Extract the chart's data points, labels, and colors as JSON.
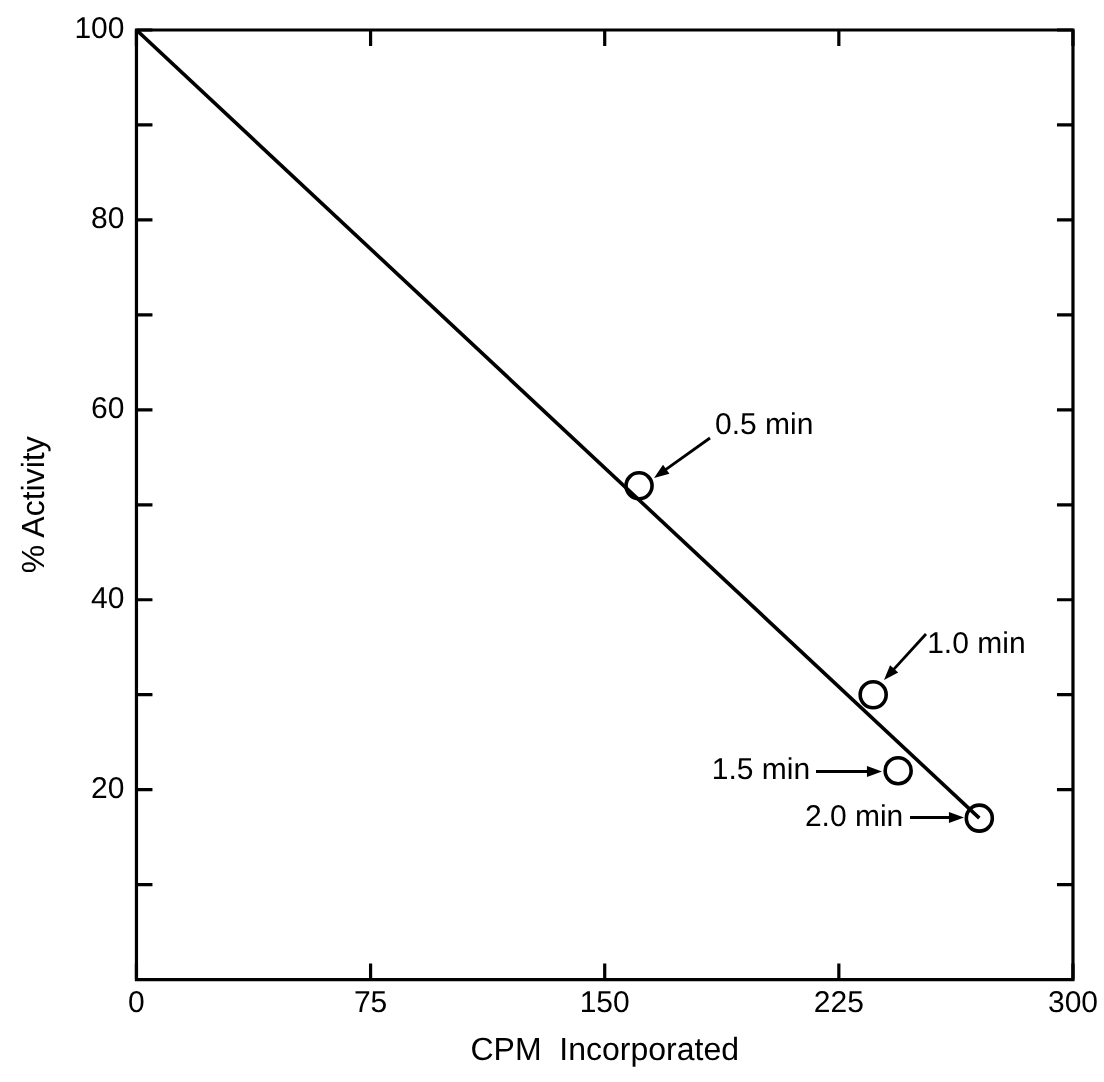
{
  "chart_data": {
    "type": "scatter",
    "xlabel": "CPM  Incorporated",
    "ylabel": "% Activity",
    "xlim": [
      0,
      300
    ],
    "xticks": [
      0,
      75,
      150,
      225,
      300
    ],
    "ylim": [
      0,
      100
    ],
    "yticks": [
      {
        "value": 10,
        "label": null
      },
      20,
      {
        "value": 30,
        "label": null
      },
      40,
      {
        "value": 50,
        "label": null
      },
      60,
      {
        "value": 70,
        "label": null
      },
      80,
      {
        "value": 90,
        "label": null
      },
      100
    ],
    "grid": false,
    "legend": false,
    "marker": "circle",
    "series": [
      {
        "type": "line",
        "color": "#000000",
        "x": [
          0,
          270
        ],
        "values": [
          100,
          17
        ],
        "marker": "none"
      },
      {
        "type": "scatter",
        "color": "#000000",
        "x": [
          161,
          236,
          244,
          270
        ],
        "values": [
          52,
          30,
          22,
          17
        ]
      }
    ],
    "annotations": [
      {
        "text": "0.5 min",
        "x": 161,
        "y": 52
      },
      {
        "text": "1.0 min",
        "x": 236,
        "y": 30
      },
      {
        "text": "1.5 min",
        "x": 244,
        "y": 22
      },
      {
        "text": "2.0 min",
        "x": 270,
        "y": 17
      }
    ]
  }
}
